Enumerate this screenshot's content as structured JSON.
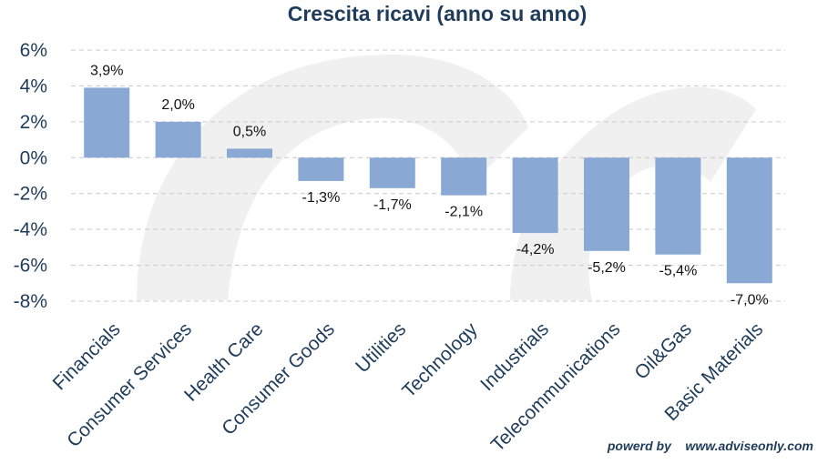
{
  "chart_data": {
    "type": "bar",
    "title": "Crescita ricavi (anno su anno)",
    "categories": [
      "Financials",
      "Consumer Services",
      "Health Care",
      "Consumer Goods",
      "Utilities",
      "Technology",
      "Industrials",
      "Telecommunications",
      "Oil&Gas",
      "Basic Materials"
    ],
    "values": [
      3.9,
      2.0,
      0.5,
      -1.3,
      -1.7,
      -2.1,
      -4.2,
      -5.2,
      -5.4,
      -7.0
    ],
    "data_labels": [
      "3,9%",
      "2,0%",
      "0,5%",
      "-1,3%",
      "-1,7%",
      "-2,1%",
      "-4,2%",
      "-5,2%",
      "-5,4%",
      "-7,0%"
    ],
    "ylim": [
      -8,
      6
    ],
    "yticks": [
      6,
      4,
      2,
      0,
      -2,
      -4,
      -6,
      -8
    ],
    "ytick_labels": [
      "6%",
      "4%",
      "2%",
      "0%",
      "-2%",
      "-4%",
      "-6%",
      "-8%"
    ],
    "grid": true,
    "legend": "none",
    "xlabel": "",
    "ylabel": "",
    "colors": {
      "bar": "#89a9d4",
      "text": "#1f3c5a",
      "grid": "#c9c9c9",
      "watermark": "#f0f0f0"
    }
  },
  "footer": {
    "credit": "powerd by    www.adviseonly.com"
  }
}
